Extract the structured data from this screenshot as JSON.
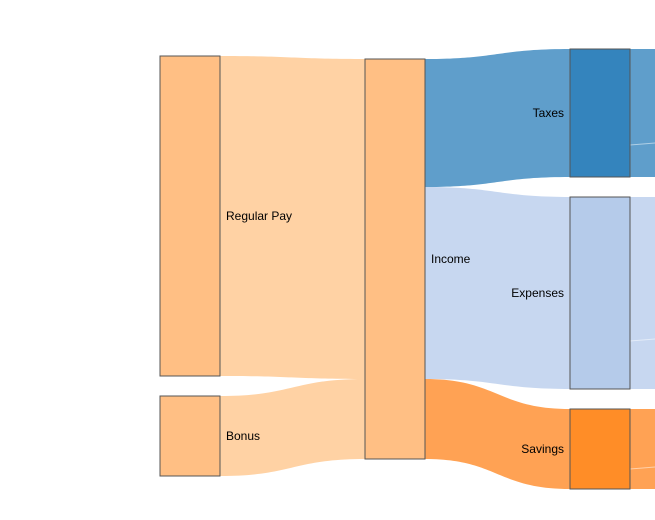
{
  "diagram": {
    "type": "sankey",
    "nodes": [
      {
        "id": "regular_pay",
        "label": "Regular Pay",
        "color": "#ffbf84"
      },
      {
        "id": "bonus",
        "label": "Bonus",
        "color": "#ffbf84"
      },
      {
        "id": "income",
        "label": "Income",
        "color": "#ffbf84"
      },
      {
        "id": "taxes",
        "label": "Taxes",
        "color": "#3484bd"
      },
      {
        "id": "expenses",
        "label": "Expenses",
        "color": "#b5cbea"
      },
      {
        "id": "savings",
        "label": "Savings",
        "color": "#ff8d27"
      }
    ],
    "links": [
      {
        "source": "regular_pay",
        "target": "income",
        "value": 4000,
        "color": "#ffd2a4"
      },
      {
        "source": "bonus",
        "target": "income",
        "value": 1000,
        "color": "#ffd2a4"
      },
      {
        "source": "income",
        "target": "taxes",
        "value": 1600,
        "color": "#5f9ecb"
      },
      {
        "source": "income",
        "target": "expenses",
        "value": 2400,
        "color": "#c7d7f0"
      },
      {
        "source": "income",
        "target": "savings",
        "value": 1000,
        "color": "#ffa254"
      }
    ]
  }
}
